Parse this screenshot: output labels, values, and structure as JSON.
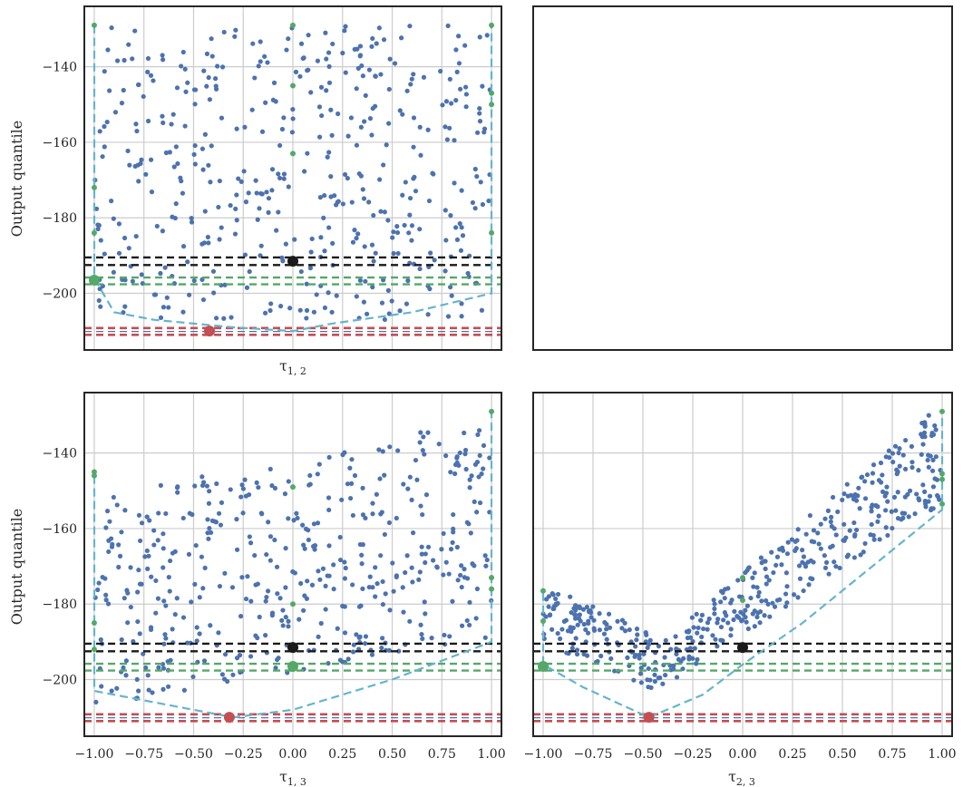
{
  "chart_data": [
    {
      "type": "scatter",
      "panel": "top-left",
      "xlabel": "τ_{1,2}",
      "ylabel": "Output quantile",
      "xlim": [
        -1.05,
        1.05
      ],
      "ylim": [
        -215,
        -124
      ],
      "x_ticks": [],
      "y_ticks": [
        -200,
        -180,
        -160,
        -140
      ],
      "grid": true,
      "hlines": {
        "black": [
          -190.5,
          -192.5
        ],
        "green": [
          -195.8,
          -197.6
        ],
        "red": [
          -209.2,
          -211.0
        ]
      },
      "markers": {
        "black": [
          [
            0.0,
            -191.5
          ]
        ],
        "red": [
          [
            -0.42,
            -210.0
          ]
        ],
        "green_large": [
          [
            -1.0,
            -196.5
          ]
        ],
        "green_small": [
          [
            -1.0,
            -129
          ],
          [
            -1.0,
            -172
          ],
          [
            -1.0,
            -184
          ],
          [
            0.0,
            -129
          ],
          [
            0.0,
            -145
          ],
          [
            0.0,
            -163
          ],
          [
            1.0,
            -129
          ],
          [
            1.0,
            -147
          ],
          [
            1.0,
            -150
          ],
          [
            1.0,
            -184
          ]
        ]
      },
      "envelope": [
        [
          -1.0,
          -129
        ],
        [
          -1.0,
          -172
        ],
        [
          -1.0,
          -196
        ],
        [
          -0.9,
          -205
        ],
        [
          -0.7,
          -207
        ],
        [
          -0.3,
          -209
        ],
        [
          0.0,
          -210
        ],
        [
          0.2,
          -208
        ],
        [
          0.6,
          -205
        ],
        [
          1.0,
          -200
        ],
        [
          1.0,
          -184
        ],
        [
          1.0,
          -129
        ]
      ],
      "point_cloud": {
        "count": 460,
        "x_range": [
          -1.0,
          1.0
        ],
        "y_range": [
          -210,
          -129
        ],
        "layout": "uniform"
      }
    },
    {
      "type": "scatter",
      "panel": "top-right",
      "empty": true
    },
    {
      "type": "scatter",
      "panel": "bottom-left",
      "xlabel": "τ_{1,3}",
      "ylabel": "Output quantile",
      "xlim": [
        -1.05,
        1.05
      ],
      "ylim": [
        -215,
        -124
      ],
      "x_ticks": [
        -1.0,
        -0.75,
        -0.5,
        -0.25,
        0.0,
        0.25,
        0.5,
        0.75,
        1.0
      ],
      "x_tick_labels": [
        "−1.00",
        "−0.75",
        "−0.50",
        "−0.25",
        "0.00",
        "0.25",
        "0.50",
        "0.75",
        "1.00"
      ],
      "y_ticks": [
        -200,
        -180,
        -160,
        -140
      ],
      "grid": true,
      "hlines": {
        "black": [
          -190.5,
          -192.5
        ],
        "green": [
          -195.8,
          -197.6
        ],
        "red": [
          -209.2,
          -211.0
        ]
      },
      "markers": {
        "black": [
          [
            0.0,
            -191.5
          ]
        ],
        "red": [
          [
            -0.32,
            -210.0
          ]
        ],
        "green_large": [
          [
            0.0,
            -196.5
          ]
        ],
        "green_small": [
          [
            -1.0,
            -145
          ],
          [
            -1.0,
            -146
          ],
          [
            -1.0,
            -185
          ],
          [
            -1.0,
            -192
          ],
          [
            0.0,
            -149
          ],
          [
            0.0,
            -180
          ],
          [
            1.0,
            -129
          ],
          [
            1.0,
            -173
          ],
          [
            1.0,
            -176
          ]
        ]
      },
      "envelope": [
        [
          -1.0,
          -146
        ],
        [
          -1.0,
          -185
        ],
        [
          -1.0,
          -203
        ],
        [
          -0.9,
          -204
        ],
        [
          -0.6,
          -207
        ],
        [
          -0.3,
          -210
        ],
        [
          0.0,
          -208
        ],
        [
          0.5,
          -200
        ],
        [
          1.0,
          -190
        ],
        [
          1.0,
          -176
        ],
        [
          1.0,
          -129
        ]
      ],
      "point_cloud": {
        "count": 460,
        "x_range": [
          -1.0,
          1.0
        ],
        "lower": "-205 + 15*(x+1)/2",
        "upper": "-152 + 23*(x+1)/2",
        "layout": "band"
      }
    },
    {
      "type": "scatter",
      "panel": "bottom-right",
      "xlabel": "τ_{2,3}",
      "ylabel": "",
      "xlim": [
        -1.05,
        1.05
      ],
      "ylim": [
        -215,
        -124
      ],
      "x_ticks": [
        -1.0,
        -0.75,
        -0.5,
        -0.25,
        0.0,
        0.25,
        0.5,
        0.75,
        1.0
      ],
      "x_tick_labels": [
        "−1.00",
        "−0.75",
        "−0.50",
        "−0.25",
        "0.00",
        "0.25",
        "0.50",
        "0.75",
        "1.00"
      ],
      "y_ticks": [],
      "grid": true,
      "hlines": {
        "black": [
          -190.5,
          -192.5
        ],
        "green": [
          -195.8,
          -197.6
        ],
        "red": [
          -209.2,
          -211.0
        ]
      },
      "markers": {
        "black": [
          [
            0.0,
            -191.5
          ]
        ],
        "red": [
          [
            -0.47,
            -210.0
          ]
        ],
        "green_large": [
          [
            -1.0,
            -196.5
          ]
        ],
        "green_small": [
          [
            -1.0,
            -176.5
          ],
          [
            -1.0,
            -184.5
          ],
          [
            0.0,
            -173
          ],
          [
            0.0,
            -179
          ],
          [
            1.0,
            -129
          ],
          [
            1.0,
            -145.5
          ],
          [
            1.0,
            -147
          ],
          [
            1.0,
            -153.5
          ]
        ]
      },
      "envelope": [
        [
          -1.0,
          -177
        ],
        [
          -1.0,
          -196
        ],
        [
          -0.8,
          -202
        ],
        [
          -0.47,
          -210
        ],
        [
          -0.2,
          -204
        ],
        [
          0.0,
          -196
        ],
        [
          0.3,
          -185
        ],
        [
          1.0,
          -155
        ],
        [
          1.0,
          -129
        ]
      ],
      "point_cloud": {
        "count": 460,
        "x_range": [
          -1.0,
          1.0
        ],
        "shape": "V-band with minimum near x=-0.45",
        "layout": "band"
      }
    }
  ],
  "axes_text": {
    "xlabel_tl": "τ1, 2",
    "xlabel_bl": "τ1, 3",
    "xlabel_br": "τ2, 3",
    "ylabel_tl": "Output quantile",
    "ylabel_bl": "Output quantile"
  },
  "colors": {
    "points": "#4c72b0",
    "green": "#55a868",
    "red": "#c44e52",
    "black": "#1a1a1a",
    "envelope": "#64b5cd",
    "grid": "#cccccc",
    "spine": "#262626"
  }
}
